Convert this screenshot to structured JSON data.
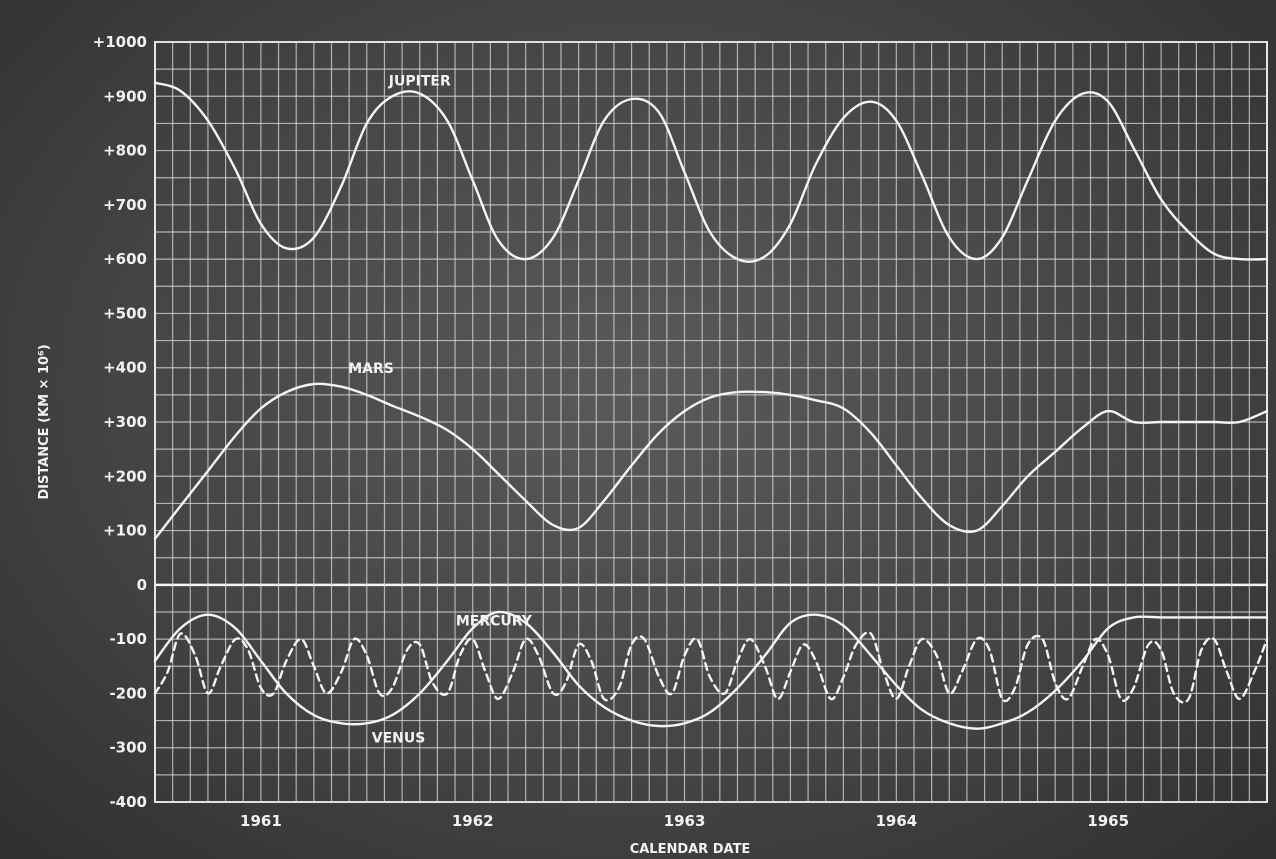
{
  "chart_data": {
    "type": "line",
    "title": "",
    "xlabel": "CALENDAR DATE",
    "ylabel": "DISTANCE (KM × 10⁶)",
    "ylim": [
      -400,
      1000
    ],
    "xlim": [
      1960.5,
      1965.75
    ],
    "grid": true,
    "y_ticks": [
      {
        "value": 1000,
        "label": "+1000"
      },
      {
        "value": 900,
        "label": "+900"
      },
      {
        "value": 800,
        "label": "+800"
      },
      {
        "value": 700,
        "label": "+700"
      },
      {
        "value": 600,
        "label": "+600"
      },
      {
        "value": 500,
        "label": "+500"
      },
      {
        "value": 400,
        "label": "+400"
      },
      {
        "value": 300,
        "label": "+300"
      },
      {
        "value": 200,
        "label": "+200"
      },
      {
        "value": 100,
        "label": "+100"
      },
      {
        "value": 0,
        "label": "0"
      },
      {
        "value": -100,
        "label": "-100"
      },
      {
        "value": -200,
        "label": "-200"
      },
      {
        "value": -300,
        "label": "-300"
      },
      {
        "value": -400,
        "label": "-400"
      }
    ],
    "x_ticks": [
      {
        "value": 1961,
        "label": "1961"
      },
      {
        "value": 1962,
        "label": "1962"
      },
      {
        "value": 1963,
        "label": "1963"
      },
      {
        "value": 1964,
        "label": "1964"
      },
      {
        "value": 1965,
        "label": "1965"
      }
    ],
    "series": [
      {
        "name": "JUPITER",
        "style": "solid",
        "label_at": {
          "x": 1961.75,
          "y": 920
        },
        "x": [
          1960.5,
          1960.62,
          1960.75,
          1960.88,
          1961.0,
          1961.12,
          1961.25,
          1961.38,
          1961.5,
          1961.62,
          1961.75,
          1961.88,
          1962.0,
          1962.12,
          1962.25,
          1962.38,
          1962.5,
          1962.62,
          1962.75,
          1962.88,
          1963.0,
          1963.12,
          1963.25,
          1963.38,
          1963.5,
          1963.62,
          1963.75,
          1963.88,
          1964.0,
          1964.12,
          1964.25,
          1964.38,
          1964.5,
          1964.62,
          1964.75,
          1964.88,
          1965.0,
          1965.12,
          1965.25,
          1965.38,
          1965.5,
          1965.62,
          1965.75
        ],
        "y": [
          925,
          910,
          855,
          765,
          665,
          620,
          640,
          735,
          850,
          900,
          905,
          855,
          745,
          635,
          600,
          640,
          745,
          855,
          895,
          870,
          760,
          650,
          600,
          605,
          665,
          775,
          860,
          890,
          855,
          755,
          640,
          600,
          640,
          745,
          855,
          905,
          890,
          805,
          710,
          650,
          610,
          600,
          600
        ]
      },
      {
        "name": "MARS",
        "style": "solid",
        "label_at": {
          "x": 1961.52,
          "y": 390
        },
        "x": [
          1960.5,
          1960.62,
          1960.75,
          1960.88,
          1961.0,
          1961.12,
          1961.25,
          1961.38,
          1961.5,
          1961.62,
          1961.75,
          1961.88,
          1962.0,
          1962.12,
          1962.25,
          1962.38,
          1962.5,
          1962.62,
          1962.75,
          1962.88,
          1963.0,
          1963.12,
          1963.25,
          1963.38,
          1963.5,
          1963.62,
          1963.75,
          1963.88,
          1964.0,
          1964.12,
          1964.25,
          1964.38,
          1964.5,
          1964.62,
          1964.75,
          1964.88,
          1965.0,
          1965.12,
          1965.25,
          1965.38,
          1965.5,
          1965.62,
          1965.75
        ],
        "y": [
          85,
          145,
          210,
          275,
          325,
          355,
          370,
          365,
          350,
          330,
          310,
          285,
          250,
          205,
          155,
          110,
          105,
          155,
          220,
          280,
          320,
          345,
          355,
          355,
          350,
          340,
          325,
          280,
          220,
          160,
          110,
          100,
          145,
          200,
          245,
          290,
          320,
          300,
          300,
          300,
          300,
          300,
          320
        ]
      },
      {
        "name": "MERCURY",
        "style": "dashed",
        "label_at": {
          "x": 1962.1,
          "y": -75
        },
        "x": [
          1960.5,
          1960.56,
          1960.62,
          1960.69,
          1960.75,
          1960.81,
          1960.88,
          1960.94,
          1961.0,
          1961.06,
          1961.12,
          1961.19,
          1961.25,
          1961.31,
          1961.38,
          1961.44,
          1961.5,
          1961.56,
          1961.62,
          1961.69,
          1961.75,
          1961.81,
          1961.88,
          1961.94,
          1962.0,
          1962.06,
          1962.12,
          1962.19,
          1962.25,
          1962.31,
          1962.38,
          1962.44,
          1962.5,
          1962.56,
          1962.62,
          1962.69,
          1962.75,
          1962.81,
          1962.88,
          1962.94,
          1963.0,
          1963.06,
          1963.12,
          1963.19,
          1963.25,
          1963.31,
          1963.38,
          1963.44,
          1963.5,
          1963.56,
          1963.62,
          1963.69,
          1963.75,
          1963.81,
          1963.88,
          1963.94,
          1964.0,
          1964.06,
          1964.12,
          1964.19,
          1964.25,
          1964.31,
          1964.38,
          1964.44,
          1964.5,
          1964.56,
          1964.62,
          1964.69,
          1964.75,
          1964.81,
          1964.88,
          1964.94,
          1965.0,
          1965.06,
          1965.12,
          1965.19,
          1965.25,
          1965.31,
          1965.38,
          1965.44,
          1965.5,
          1965.56,
          1965.62,
          1965.69,
          1965.75
        ],
        "y": [
          -200,
          -160,
          -90,
          -130,
          -200,
          -150,
          -100,
          -120,
          -190,
          -200,
          -140,
          -100,
          -150,
          -200,
          -160,
          -100,
          -130,
          -200,
          -190,
          -120,
          -110,
          -180,
          -200,
          -130,
          -100,
          -160,
          -210,
          -160,
          -100,
          -130,
          -200,
          -180,
          -110,
          -140,
          -210,
          -190,
          -110,
          -100,
          -170,
          -200,
          -130,
          -100,
          -170,
          -200,
          -140,
          -100,
          -150,
          -210,
          -160,
          -110,
          -140,
          -210,
          -170,
          -110,
          -90,
          -160,
          -210,
          -150,
          -100,
          -130,
          -200,
          -160,
          -100,
          -120,
          -210,
          -190,
          -110,
          -100,
          -180,
          -210,
          -150,
          -100,
          -130,
          -210,
          -190,
          -110,
          -120,
          -200,
          -210,
          -120,
          -100,
          -160,
          -210,
          -160,
          -100
        ]
      },
      {
        "name": "VENUS",
        "style": "solid",
        "label_at": {
          "x": 1961.65,
          "y": -290
        },
        "x": [
          1960.5,
          1960.62,
          1960.75,
          1960.88,
          1961.0,
          1961.12,
          1961.25,
          1961.38,
          1961.5,
          1961.62,
          1961.75,
          1961.88,
          1962.0,
          1962.12,
          1962.25,
          1962.38,
          1962.5,
          1962.62,
          1962.75,
          1962.88,
          1963.0,
          1963.12,
          1963.25,
          1963.38,
          1963.5,
          1963.62,
          1963.75,
          1963.88,
          1964.0,
          1964.12,
          1964.25,
          1964.38,
          1964.5,
          1964.62,
          1964.75,
          1964.88,
          1965.0,
          1965.12,
          1965.25,
          1965.38,
          1965.5,
          1965.62,
          1965.75
        ],
        "y": [
          -140,
          -80,
          -55,
          -80,
          -140,
          -200,
          -240,
          -255,
          -255,
          -240,
          -200,
          -140,
          -80,
          -50,
          -70,
          -125,
          -185,
          -225,
          -250,
          -260,
          -255,
          -235,
          -190,
          -130,
          -70,
          -55,
          -75,
          -130,
          -185,
          -230,
          -255,
          -265,
          -255,
          -235,
          -195,
          -140,
          -80,
          -60,
          -60,
          -60,
          -60,
          -60,
          -60
        ]
      }
    ]
  }
}
